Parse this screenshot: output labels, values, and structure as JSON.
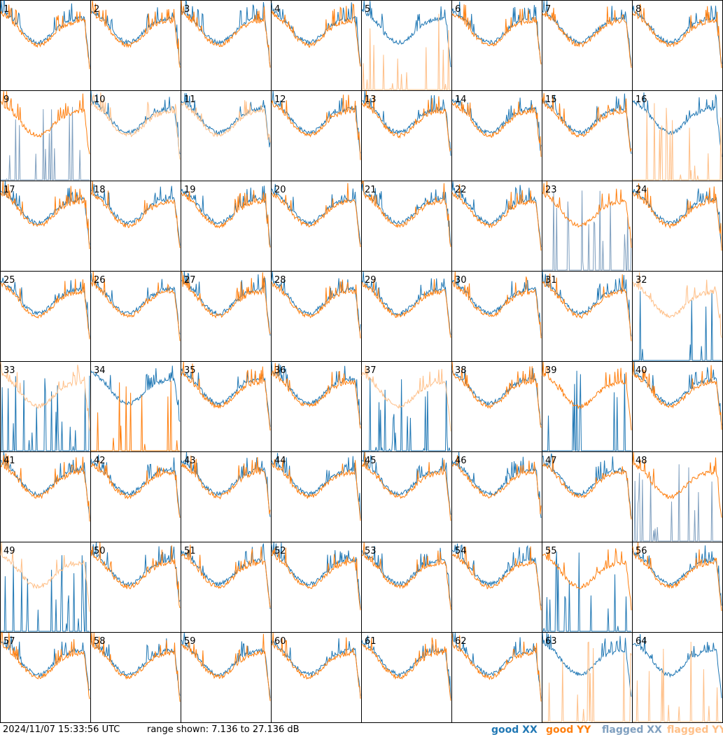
{
  "chart_data": {
    "type": "line",
    "layout": "8x8 small multiples",
    "panel_labels": [
      "1",
      "2",
      "3",
      "4",
      "5",
      "6",
      "7",
      "8",
      "9",
      "10",
      "11",
      "12",
      "13",
      "14",
      "15",
      "16",
      "17",
      "18",
      "19",
      "20",
      "21",
      "22",
      "23",
      "24",
      "25",
      "26",
      "27",
      "28",
      "29",
      "30",
      "31",
      "32",
      "33",
      "34",
      "35",
      "36",
      "37",
      "38",
      "39",
      "40",
      "41",
      "42",
      "43",
      "44",
      "45",
      "46",
      "47",
      "48",
      "49",
      "50",
      "51",
      "52",
      "53",
      "54",
      "55",
      "56",
      "57",
      "58",
      "59",
      "60",
      "61",
      "62",
      "63",
      "64"
    ],
    "ylim": [
      7.136,
      27.136
    ],
    "yunit": "dB",
    "xlabel": "",
    "ylabel": "",
    "grid": false,
    "series": [
      {
        "name": "good XX",
        "color": "#1f77b4"
      },
      {
        "name": "good YY",
        "color": "#ff7f0e"
      },
      {
        "name": "flagged XX",
        "color": "#7f9fbf"
      },
      {
        "name": "flagged YY",
        "color": "#ffbf87"
      }
    ],
    "flagged_xx_panels": [
      9,
      23,
      48
    ],
    "flagged_yy_panels": [
      5,
      10,
      11,
      16,
      32,
      33,
      37,
      49,
      63,
      64
    ],
    "xx_dead_panels": [
      9,
      23,
      32,
      33,
      37,
      48,
      49
    ],
    "yy_dead_panels": [
      5,
      16,
      34,
      63,
      64
    ],
    "xx_spiky_panels": [
      39,
      55
    ],
    "yy_spiky_panels": [
      34
    ]
  },
  "footer": {
    "timestamp": "2024/11/07 15:33:56 UTC",
    "range": "range shown: 7.136 to 27.136 dB"
  },
  "legend": {
    "good_xx": {
      "label": "good XX",
      "color": "#1f77b4"
    },
    "good_yy": {
      "label": "good YY",
      "color": "#ff7f0e"
    },
    "flagged_xx": {
      "label": "flagged XX",
      "color": "#7f9fbf"
    },
    "flagged_yy": {
      "label": "flagged YY",
      "color": "#ffbf87"
    }
  }
}
